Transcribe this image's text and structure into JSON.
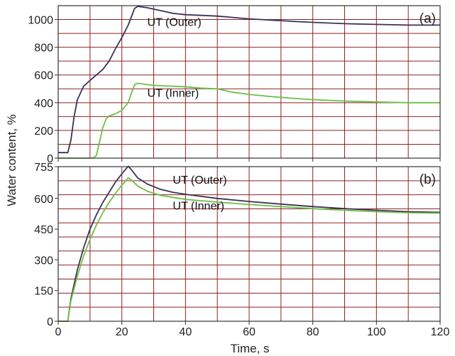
{
  "chart_data": [
    {
      "id": "a",
      "type": "line",
      "panel_label": "(a)",
      "xlim": [
        0,
        120
      ],
      "ylim": [
        0,
        1100
      ],
      "xticks": [
        0,
        20,
        40,
        60,
        80,
        100,
        120
      ],
      "xtick_labels_shown": false,
      "yticks": [
        0,
        200,
        400,
        600,
        800,
        1000
      ],
      "grid": true,
      "series": [
        {
          "name": "UT (Outer)",
          "color": "#3b3255",
          "points": [
            [
              0,
              40
            ],
            [
              3,
              40
            ],
            [
              4,
              130
            ],
            [
              5,
              300
            ],
            [
              6,
              420
            ],
            [
              7,
              470
            ],
            [
              8,
              520
            ],
            [
              10,
              560
            ],
            [
              12,
              600
            ],
            [
              14,
              640
            ],
            [
              16,
              700
            ],
            [
              18,
              790
            ],
            [
              20,
              870
            ],
            [
              22,
              960
            ],
            [
              23,
              1020
            ],
            [
              24,
              1080
            ],
            [
              25,
              1095
            ],
            [
              28,
              1085
            ],
            [
              30,
              1075
            ],
            [
              33,
              1060
            ],
            [
              36,
              1045
            ],
            [
              40,
              1035
            ],
            [
              45,
              1030
            ],
            [
              50,
              1025
            ],
            [
              55,
              1015
            ],
            [
              60,
              1005
            ],
            [
              65,
              998
            ],
            [
              70,
              992
            ],
            [
              75,
              985
            ],
            [
              80,
              980
            ],
            [
              90,
              970
            ],
            [
              100,
              965
            ],
            [
              110,
              960
            ],
            [
              120,
              960
            ]
          ],
          "label_at": [
            28,
            953
          ]
        },
        {
          "name": "UT (Inner)",
          "color": "#6cbf45",
          "points": [
            [
              0,
              0
            ],
            [
              11,
              0
            ],
            [
              12,
              20
            ],
            [
              13,
              120
            ],
            [
              14,
              220
            ],
            [
              15,
              280
            ],
            [
              16,
              305
            ],
            [
              18,
              320
            ],
            [
              20,
              345
            ],
            [
              22,
              400
            ],
            [
              23,
              470
            ],
            [
              24,
              530
            ],
            [
              25,
              540
            ],
            [
              30,
              525
            ],
            [
              35,
              520
            ],
            [
              40,
              515
            ],
            [
              45,
              505
            ],
            [
              50,
              500
            ],
            [
              55,
              475
            ],
            [
              60,
              460
            ],
            [
              65,
              448
            ],
            [
              70,
              438
            ],
            [
              75,
              430
            ],
            [
              80,
              422
            ],
            [
              90,
              412
            ],
            [
              100,
              405
            ],
            [
              110,
              400
            ],
            [
              120,
              400
            ]
          ],
          "label_at": [
            28,
            443
          ]
        }
      ]
    },
    {
      "id": "b",
      "type": "line",
      "panel_label": "(b)",
      "xlim": [
        0,
        120
      ],
      "ylim": [
        0,
        755
      ],
      "xticks": [
        0,
        20,
        40,
        60,
        80,
        100,
        120
      ],
      "yticks": [
        0,
        150,
        300,
        450,
        600,
        755
      ],
      "grid": true,
      "series": [
        {
          "name": "UT (Outer)",
          "color": "#3b3255",
          "points": [
            [
              0,
              0
            ],
            [
              3,
              0
            ],
            [
              4,
              110
            ],
            [
              6,
              250
            ],
            [
              8,
              360
            ],
            [
              10,
              450
            ],
            [
              12,
              520
            ],
            [
              14,
              580
            ],
            [
              16,
              630
            ],
            [
              18,
              680
            ],
            [
              20,
              720
            ],
            [
              22,
              757
            ],
            [
              23,
              740
            ],
            [
              25,
              700
            ],
            [
              28,
              670
            ],
            [
              32,
              645
            ],
            [
              36,
              630
            ],
            [
              40,
              620
            ],
            [
              50,
              600
            ],
            [
              60,
              585
            ],
            [
              70,
              572
            ],
            [
              80,
              560
            ],
            [
              90,
              550
            ],
            [
              100,
              542
            ],
            [
              110,
              535
            ],
            [
              120,
              532
            ]
          ],
          "label_at": [
            36,
            672
          ]
        },
        {
          "name": "UT (Inner)",
          "color": "#6cbf45",
          "points": [
            [
              0,
              0
            ],
            [
              3,
              0
            ],
            [
              4,
              100
            ],
            [
              6,
              220
            ],
            [
              8,
              320
            ],
            [
              10,
              400
            ],
            [
              12,
              470
            ],
            [
              14,
              530
            ],
            [
              16,
              580
            ],
            [
              18,
              625
            ],
            [
              20,
              665
            ],
            [
              22,
              700
            ],
            [
              23,
              690
            ],
            [
              25,
              660
            ],
            [
              28,
              635
            ],
            [
              32,
              615
            ],
            [
              36,
              605
            ],
            [
              40,
              595
            ],
            [
              50,
              582
            ],
            [
              60,
              570
            ],
            [
              70,
              560
            ],
            [
              80,
              550
            ],
            [
              90,
              542
            ],
            [
              100,
              535
            ],
            [
              110,
              530
            ],
            [
              120,
              528
            ]
          ],
          "label_at": [
            36,
            545
          ]
        }
      ]
    }
  ],
  "ylabel": "Water content, %",
  "xlabel": "Time, s"
}
